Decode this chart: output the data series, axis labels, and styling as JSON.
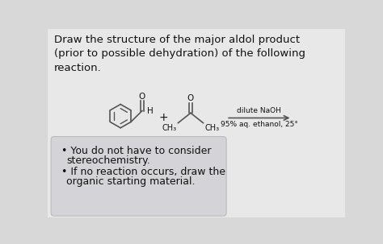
{
  "bg_color": "#d8d8d8",
  "inner_bg": "#e8e8e8",
  "title_text": "Draw the structure of the major aldol product\n(prior to possible dehydration) of the following\nreaction.",
  "title_fontsize": 9.5,
  "bullet1_line1": "You do not have to consider",
  "bullet1_line2": "stereochemistry.",
  "bullet2_line1": "If no reaction occurs, draw the",
  "bullet2_line2": "organic starting material.",
  "bullet_fontsize": 9.0,
  "bullet_box_color": "#d4d4d8",
  "reaction_label_top": "dilute NaOH",
  "reaction_label_bot": "95% aq. ethanol, 25°",
  "reaction_label_fontsize": 6.5,
  "line_color": "#555555",
  "arrow_color": "#555555",
  "text_color": "#111111"
}
